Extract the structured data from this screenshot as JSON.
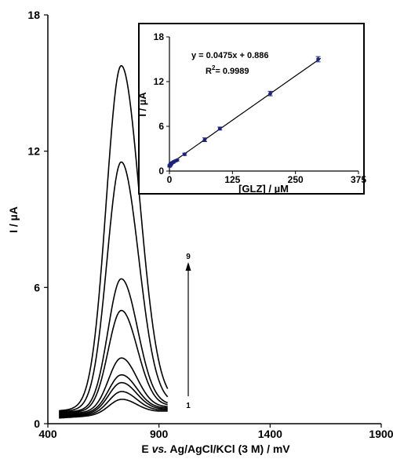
{
  "chart_data": [
    {
      "type": "line",
      "xlabel": "E vs. Ag/AgCl/KCl (3 M) / mV",
      "xlabel_parts": [
        "E ",
        "vs.",
        " Ag/AgCl/KCl (3 M) / mV"
      ],
      "ylabel": "I / µA",
      "xlim": [
        400,
        1900
      ],
      "ylim": [
        0,
        18
      ],
      "xticks": [
        400,
        900,
        1400,
        1900
      ],
      "yticks": [
        0,
        6,
        12,
        18
      ],
      "x_range": [
        450,
        940
      ],
      "peak_x": 730,
      "peak_heights": [
        0.65,
        0.95,
        1.3,
        1.6,
        2.3,
        4.35,
        5.7,
        10.8,
        15.0
      ],
      "curve_labels": {
        "first": "1",
        "last": "9"
      },
      "grid": false,
      "legend": "none"
    },
    {
      "type": "scatter",
      "role": "inset",
      "xlabel": "[GLZ] / µM",
      "ylabel": "I / µA",
      "xlim": [
        0,
        375
      ],
      "ylim": [
        0,
        18
      ],
      "xticks": [
        0,
        125,
        250,
        375
      ],
      "yticks": [
        0,
        6,
        12,
        18
      ],
      "x": [
        0.5,
        1,
        2,
        3,
        5,
        7,
        10,
        15,
        30,
        70,
        100,
        200,
        295
      ],
      "y": [
        0.65,
        0.75,
        0.85,
        0.95,
        1.1,
        1.15,
        1.3,
        1.45,
        2.25,
        4.2,
        5.7,
        10.4,
        15.0
      ],
      "errors": [
        0.1,
        0.1,
        0.1,
        0.1,
        0.1,
        0.1,
        0.1,
        0.1,
        0.15,
        0.25,
        0.2,
        0.3,
        0.35
      ],
      "fit": {
        "slope": 0.0475,
        "intercept": 0.886
      },
      "equation": "y = 0.0475x + 0.886",
      "r2_label": "R",
      "r2_sup": "2",
      "r2_value": "= 0.9989",
      "grid": false
    }
  ]
}
